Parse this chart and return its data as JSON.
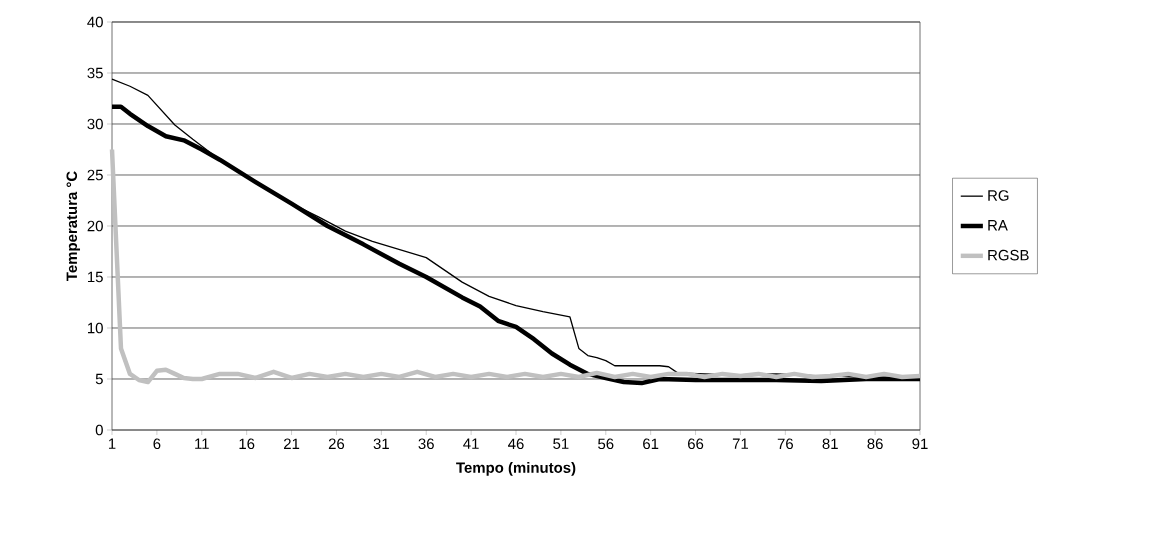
{
  "chart_data": {
    "type": "line",
    "xlabel": "Tempo (minutos)",
    "ylabel": "Temperatura °C",
    "xlim": [
      1,
      91
    ],
    "xticks": [
      1,
      6,
      11,
      16,
      21,
      26,
      31,
      36,
      41,
      46,
      51,
      56,
      61,
      66,
      71,
      76,
      81,
      86,
      91
    ],
    "ylim": [
      0,
      40
    ],
    "yticks": [
      0,
      5,
      10,
      15,
      20,
      25,
      30,
      35,
      40
    ],
    "grid": "y",
    "legend": "right",
    "series": [
      {
        "name": "RG",
        "color": "#000000",
        "x": [
          1,
          3,
          5,
          8,
          10,
          13,
          17,
          21,
          24,
          27,
          30,
          33,
          36,
          38,
          40,
          43,
          46,
          49,
          52,
          53,
          54,
          55,
          56,
          57,
          62,
          63,
          64,
          70,
          75,
          80,
          85,
          91
        ],
        "values": [
          34.4,
          33.7,
          32.8,
          29.9,
          28.5,
          26.5,
          24.3,
          22.2,
          20.9,
          19.5,
          18.5,
          17.7,
          16.9,
          15.7,
          14.5,
          13.1,
          12.2,
          11.6,
          11.1,
          8,
          7.3,
          7.1,
          6.8,
          6.3,
          6.3,
          6.2,
          5.6,
          5.4,
          5.5,
          5.3,
          5.2,
          5.1
        ]
      },
      {
        "name": "RA",
        "color": "#000000",
        "x": [
          1,
          2,
          3,
          5,
          7,
          9,
          11,
          13,
          17,
          21,
          25,
          29,
          33,
          36,
          40,
          42,
          44,
          46,
          48,
          50,
          52,
          54,
          56,
          58,
          60,
          62,
          66,
          70,
          75,
          80,
          85,
          91
        ],
        "values": [
          31.7,
          31.7,
          31,
          29.8,
          28.8,
          28.4,
          27.5,
          26.5,
          24.3,
          22.2,
          20,
          18.2,
          16.3,
          15,
          13,
          12.1,
          10.7,
          10.1,
          8.9,
          7.5,
          6.4,
          5.5,
          5.1,
          4.7,
          4.6,
          5,
          4.9,
          4.9,
          4.9,
          4.8,
          5,
          5
        ]
      },
      {
        "name": "RGSB",
        "color": "#c0c0c0",
        "x": [
          1,
          2,
          3,
          4,
          5,
          6,
          7,
          8,
          9,
          10,
          11,
          13,
          15,
          17,
          19,
          21,
          23,
          25,
          27,
          29,
          31,
          33,
          35,
          37,
          39,
          41,
          43,
          45,
          47,
          49,
          51,
          53,
          55,
          57,
          59,
          61,
          63,
          65,
          67,
          69,
          71,
          73,
          75,
          77,
          79,
          81,
          83,
          85,
          87,
          89,
          91
        ],
        "values": [
          27.5,
          8,
          5.5,
          4.9,
          4.7,
          5.8,
          5.9,
          5.5,
          5.1,
          5,
          5,
          5.5,
          5.5,
          5.1,
          5.7,
          5.1,
          5.5,
          5.2,
          5.5,
          5.2,
          5.5,
          5.2,
          5.7,
          5.2,
          5.5,
          5.2,
          5.5,
          5.2,
          5.5,
          5.2,
          5.5,
          5.2,
          5.6,
          5.2,
          5.5,
          5.2,
          5.5,
          5.5,
          5.2,
          5.5,
          5.3,
          5.5,
          5.2,
          5.5,
          5.2,
          5.3,
          5.5,
          5.2,
          5.5,
          5.2,
          5.3
        ]
      }
    ]
  }
}
